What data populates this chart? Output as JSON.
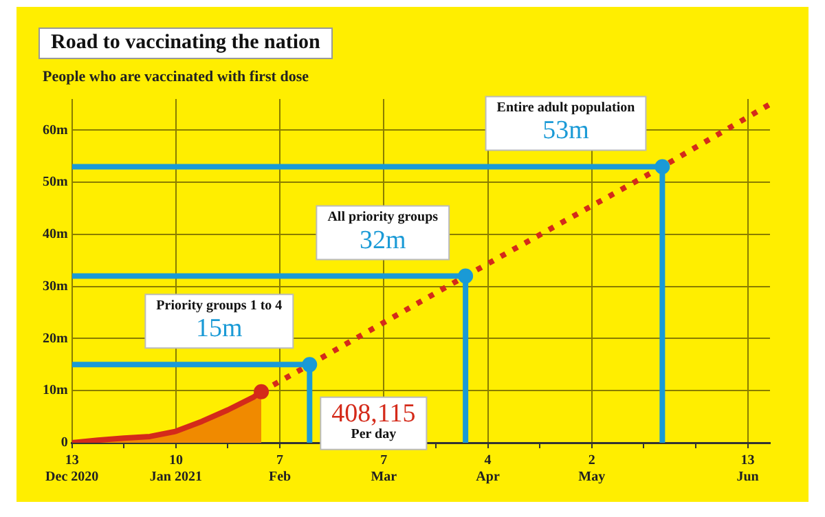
{
  "chart_data": {
    "type": "line",
    "title": "Road to vaccinating the nation",
    "subtitle": "People who are vaccinated with first dose",
    "xlim": [
      "2020-12-13",
      "2021-06-19"
    ],
    "xticks": [
      {
        "value": "2020-12-13",
        "label": "13\nDec 2020"
      },
      {
        "value": "2020-12-27",
        "label": null
      },
      {
        "value": "2021-01-10",
        "label": "10\nJan 2021"
      },
      {
        "value": "2021-01-24",
        "label": null
      },
      {
        "value": "2021-02-07",
        "label": "7\nFeb"
      },
      {
        "value": "2021-02-21",
        "label": null
      },
      {
        "value": "2021-03-07",
        "label": "7\nMar"
      },
      {
        "value": "2021-03-21",
        "label": null
      },
      {
        "value": "2021-04-04",
        "label": "4\nApr"
      },
      {
        "value": "2021-04-18",
        "label": null
      },
      {
        "value": "2021-05-02",
        "label": "2\nMay"
      },
      {
        "value": "2021-05-16",
        "label": null
      },
      {
        "value": "2021-05-30",
        "label": null
      },
      {
        "value": "2021-06-13",
        "label": "13\nJun"
      }
    ],
    "ylim": [
      0,
      66
    ],
    "yticks": [
      {
        "value": 0,
        "label": "0"
      },
      {
        "value": 10,
        "label": "10m"
      },
      {
        "value": 20,
        "label": "20m"
      },
      {
        "value": 30,
        "label": "30m"
      },
      {
        "value": 40,
        "label": "40m"
      },
      {
        "value": 50,
        "label": "50m"
      },
      {
        "value": 60,
        "label": "60m"
      }
    ],
    "grid": true,
    "legend": false,
    "series": [
      {
        "color": "#1a9ad6",
        "x": [
          "2020-12-13",
          "2021-02-15",
          "2021-02-15"
        ],
        "values": [
          15,
          15,
          0
        ]
      },
      {
        "color": "#1a9ad6",
        "x": [
          "2020-12-13",
          "2021-03-29",
          "2021-03-29"
        ],
        "values": [
          32,
          32,
          0
        ]
      },
      {
        "color": "#1a9ad6",
        "x": [
          "2020-12-13",
          "2021-05-21",
          "2021-05-21"
        ],
        "values": [
          53,
          53,
          0
        ]
      },
      {
        "color": "#d42a1a",
        "line_style": "dotted",
        "x": [
          "2021-02-02",
          "2021-02-15",
          "2021-03-29",
          "2021-05-21",
          "2021-06-19"
        ],
        "values": [
          9.8,
          15,
          32,
          53,
          65
        ]
      },
      {
        "type": "area",
        "color": "#d42a1a",
        "x": [
          "2020-12-13",
          "2020-12-20",
          "2020-12-27",
          "2021-01-03",
          "2021-01-10",
          "2021-01-17",
          "2021-01-24",
          "2021-01-31",
          "2021-02-02"
        ],
        "values": [
          0,
          0.5,
          0.9,
          1.2,
          2.2,
          4.1,
          6.3,
          8.8,
          9.8
        ]
      },
      {
        "type": "scatter",
        "color": "#1a9ad6",
        "marker": "circle",
        "x": [
          "2021-02-15",
          "2021-03-29",
          "2021-05-21"
        ],
        "values": [
          15,
          32,
          53
        ]
      },
      {
        "type": "scatter",
        "color": "#d42a1a",
        "marker": "circle",
        "x": [
          "2021-02-02"
        ],
        "values": [
          9.8
        ]
      }
    ],
    "annotations": [
      "Priority groups 1 to 4",
      "15m",
      "All priority groups",
      "32m",
      "Entire adult population",
      "53m",
      "408,115",
      "Per day"
    ]
  }
}
